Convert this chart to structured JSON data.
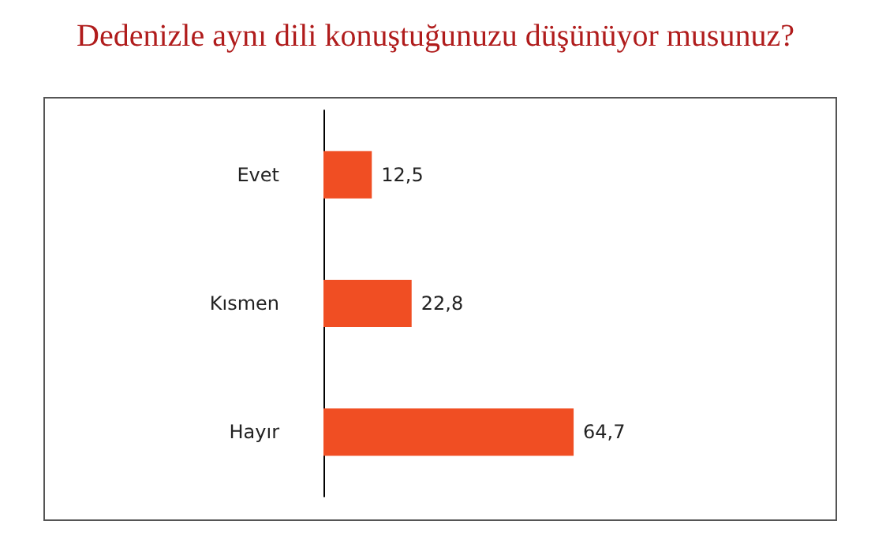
{
  "chart_data": {
    "type": "bar",
    "title": "Dedenizle aynı dili konuştuğunuzu düşünüyor musunuz?",
    "orientation": "horizontal",
    "categories": [
      "Evet",
      "Kısmen",
      "Hayır"
    ],
    "values": [
      12.5,
      22.8,
      64.7
    ],
    "value_labels": [
      "12,5",
      "22,8",
      "64,7"
    ],
    "color": "#f04e23"
  }
}
